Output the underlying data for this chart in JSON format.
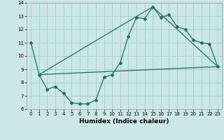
{
  "xlabel": "Humidex (Indice chaleur)",
  "bg_color": "#cce8e4",
  "grid_color": "#aad0cc",
  "line_color": "#1a6e64",
  "xlim": [
    -0.5,
    23.5
  ],
  "ylim": [
    6,
    14
  ],
  "xticks": [
    0,
    1,
    2,
    3,
    4,
    5,
    6,
    7,
    8,
    9,
    10,
    11,
    12,
    13,
    14,
    15,
    16,
    17,
    18,
    19,
    20,
    21,
    22,
    23
  ],
  "yticks": [
    6,
    7,
    8,
    9,
    10,
    11,
    12,
    13,
    14
  ],
  "line1_x": [
    0,
    1,
    2,
    3,
    4,
    5,
    6,
    7,
    8,
    9,
    10,
    11,
    12,
    13,
    14,
    15,
    16,
    17,
    18,
    19,
    20,
    21,
    22,
    23
  ],
  "line1_y": [
    11,
    8.6,
    7.5,
    7.7,
    7.2,
    6.5,
    6.4,
    6.4,
    6.7,
    8.4,
    8.6,
    9.5,
    11.5,
    12.9,
    12.8,
    13.7,
    12.9,
    13.1,
    12.2,
    12.0,
    11.2,
    11.0,
    10.9,
    9.2
  ],
  "line2_x": [
    1,
    23
  ],
  "line2_y": [
    8.6,
    9.2
  ],
  "line3_x": [
    1,
    15,
    23
  ],
  "line3_y": [
    8.6,
    13.7,
    9.2
  ],
  "marker_size": 2.0,
  "line_width": 0.9,
  "tick_fontsize": 5.0,
  "xlabel_fontsize": 6.5
}
